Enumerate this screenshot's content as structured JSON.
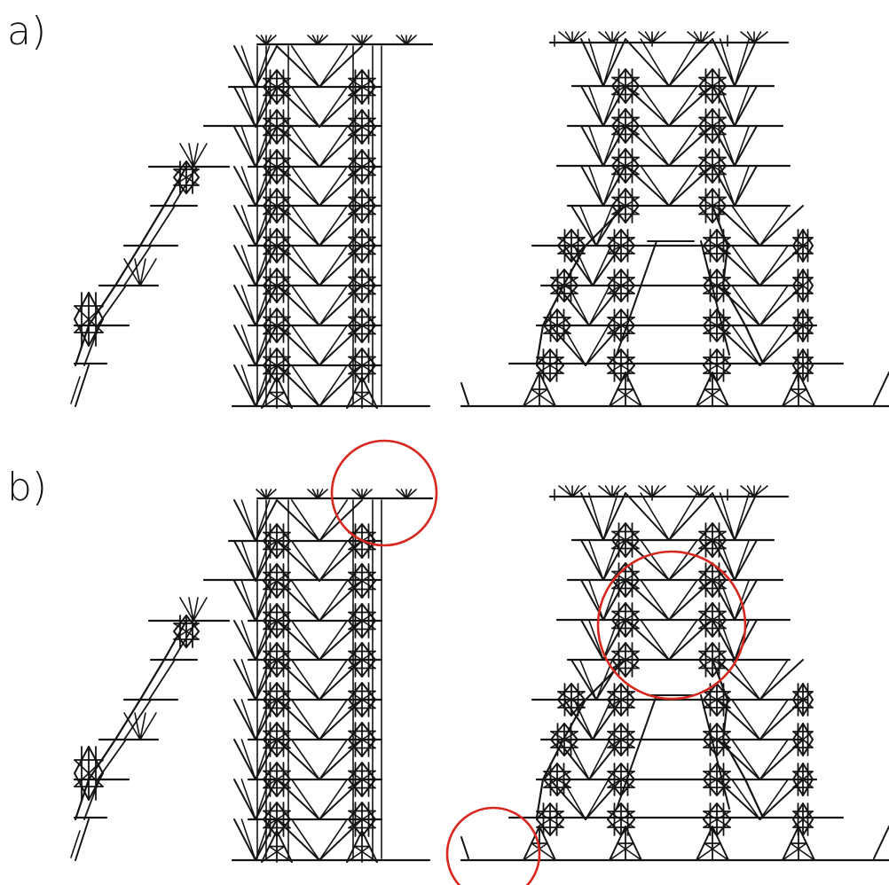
{
  "panels": [
    {
      "label": "a)",
      "highlights": 0
    },
    {
      "label": "b)",
      "highlights": 3
    }
  ],
  "colors": {
    "structure": "#141414",
    "highlight": "#d6281e",
    "background": "#ffffff"
  }
}
